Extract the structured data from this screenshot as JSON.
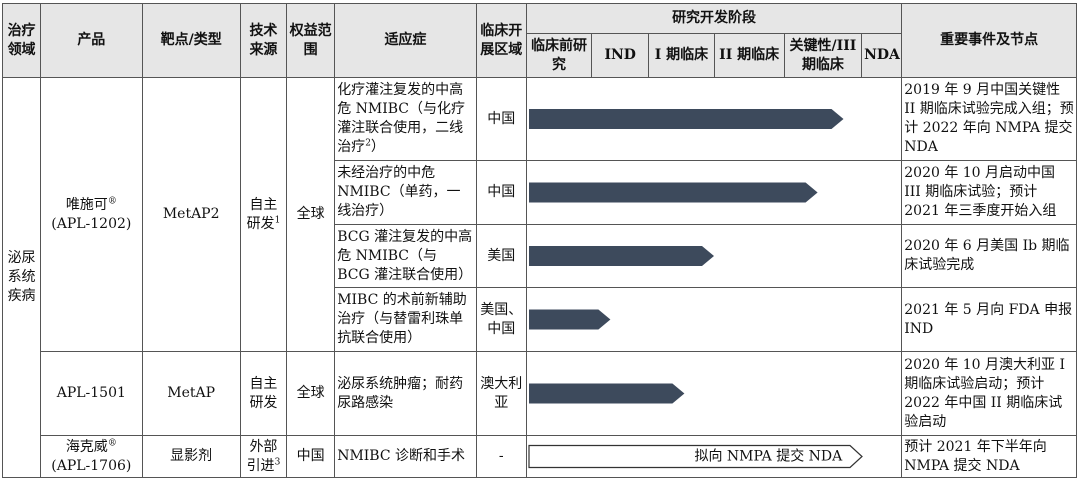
{
  "headers": {
    "area": "治疗领域",
    "product": "产品",
    "target": "靶点/类型",
    "tech": "技术来源",
    "rights": "权益范围",
    "indication": "适应症",
    "region": "临床开展区域",
    "stages_title": "研究开发阶段",
    "stages": [
      "临床前研究",
      "IND",
      "I 期临床",
      "II 期临床",
      "关键性/III 期临床",
      "NDA"
    ],
    "events": "重要事件及节点"
  },
  "area_value": "泌尿系统疾病",
  "products": [
    {
      "name": "唯施可",
      "mark": "®",
      "code": "(APL-1202)",
      "target": "MetAP2",
      "tech": "自主研发",
      "tech_sup": "1",
      "rights": "全球"
    },
    {
      "name": "APL-1501",
      "target": "MetAP",
      "tech": "自主研发",
      "rights": "全球"
    },
    {
      "name": "海克威",
      "mark": "®",
      "code": "(APL-1706)",
      "target": "显影剂",
      "tech": "外部引进",
      "tech_sup": "3",
      "rights": "中国"
    }
  ],
  "rows": [
    {
      "indication": "化疗灌注复发的中高危 NMIBC（与化疗灌注联合使用，二线治疗",
      "indication_sup": "2",
      "indication_tail": "）",
      "region": "中国",
      "progress": 0.85,
      "event": "2019 年 9 月中国关键性 II 期临床试验完成入组；预计 2022 年向 NMPA 提交 NDA"
    },
    {
      "indication": "未经治疗的中危 NMIBC（单药，一线治疗）",
      "region": "中国",
      "progress": 0.78,
      "event": "2020 年 10 月启动中国 III 期临床试验；预计 2021 年三季度开始入组"
    },
    {
      "indication": "BCG 灌注复发的中高危 NMIBC（与 BCG 灌注联合使用）",
      "region": "美国",
      "progress": 0.5,
      "event": "2020 年 6 月美国 Ib 期临床试验完成"
    },
    {
      "indication": "MIBC 的术前新辅助治疗（与替雷利珠单抗联合使用）",
      "region": "美国、中国",
      "progress": 0.22,
      "event": "2021 年 5 月向 FDA 申报 IND"
    },
    {
      "indication": "泌尿系统肿瘤；耐药尿路感染",
      "region": "澳大利亚",
      "progress": 0.42,
      "event": "2020 年 10 月澳大利亚 I 期临床试验启动；预计 2022 年中国 II 期临床试验启动"
    },
    {
      "indication": "NMIBC 诊断和手术",
      "region": "-",
      "progress": 0.9,
      "outline": true,
      "bar_label": "拟向 NMPA 提交 NDA",
      "event": "预计 2021 年下半年向 NMPA 提交 NDA"
    }
  ],
  "colors": {
    "bar": "#3d4a5c",
    "header_bg": "#e6e6e6"
  }
}
